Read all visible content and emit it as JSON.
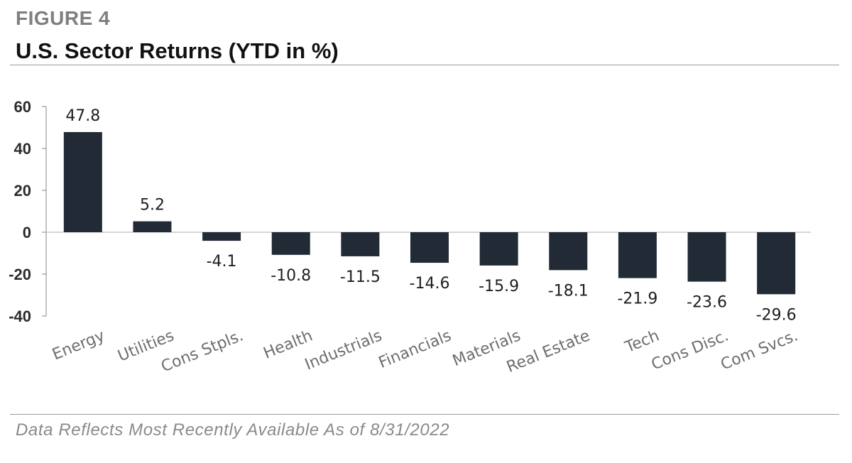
{
  "figure_label": "FIGURE 4",
  "title": "U.S. Sector Returns (YTD in %)",
  "footnote": "Data Reflects Most Recently Available As of 8/31/2022",
  "colors": {
    "bar": "#222a35",
    "axis": "#9a9a9a",
    "zero_line": "#c8c8c8"
  },
  "chart_data": {
    "type": "bar",
    "title": "U.S. Sector Returns (YTD in %)",
    "categories": [
      "Energy",
      "Utilities",
      "Cons Stpls.",
      "Health",
      "Industrials",
      "Financials",
      "Materials",
      "Real Estate",
      "Tech",
      "Cons Disc.",
      "Com Svcs."
    ],
    "values": [
      47.8,
      5.2,
      -4.1,
      -10.8,
      -11.5,
      -14.6,
      -15.9,
      -18.1,
      -21.9,
      -23.6,
      -29.6
    ],
    "data_labels": [
      "47.8",
      "5.2",
      "-4.1",
      "-10.8",
      "-11.5",
      "-14.6",
      "-15.9",
      "-18.1",
      "-21.9",
      "-23.6",
      "-29.6"
    ],
    "yticks": [
      60,
      40,
      20,
      0,
      -20,
      -40
    ],
    "ytick_labels": [
      "60",
      "40",
      "20",
      "0",
      "-20",
      "-40"
    ],
    "ylim": [
      -40,
      60
    ],
    "xlabel": "",
    "ylabel": "",
    "grid": false,
    "legend": "none"
  }
}
